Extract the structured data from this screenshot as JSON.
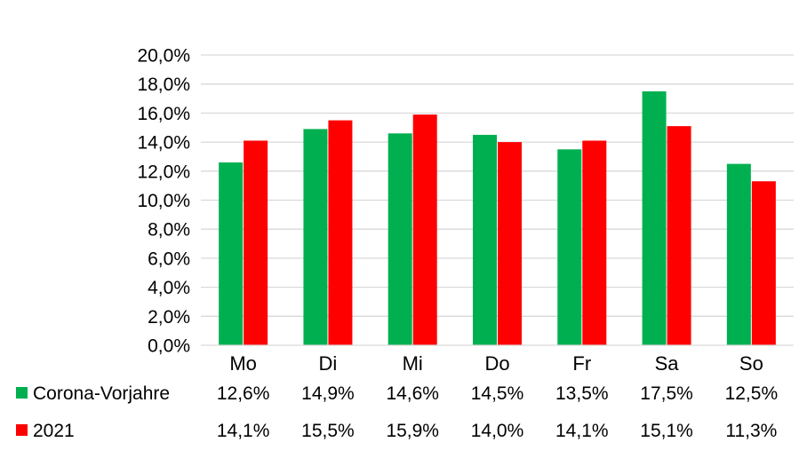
{
  "chart_data": {
    "type": "bar",
    "title": "",
    "xlabel": "",
    "ylabel": "",
    "categories": [
      "Mo",
      "Di",
      "Mi",
      "Do",
      "Fr",
      "Sa",
      "So"
    ],
    "ylim": [
      0,
      20
    ],
    "yticks": [
      "0,0%",
      "2,0%",
      "4,0%",
      "6,0%",
      "8,0%",
      "10,0%",
      "12,0%",
      "14,0%",
      "16,0%",
      "18,0%",
      "20,0%"
    ],
    "grid": true,
    "legend": "bottom (data table)",
    "series": [
      {
        "name": "Corona-Vorjahre",
        "color": "#00b050",
        "values": [
          12.6,
          14.9,
          14.6,
          14.5,
          13.5,
          17.5,
          12.5
        ],
        "labels": [
          "12,6%",
          "14,9%",
          "14,6%",
          "14,5%",
          "13,5%",
          "17,5%",
          "12,5%"
        ]
      },
      {
        "name": "2021",
        "color": "#ff0000",
        "values": [
          14.1,
          15.5,
          15.9,
          14.0,
          14.1,
          15.1,
          11.3
        ],
        "labels": [
          "14,1%",
          "15,5%",
          "15,9%",
          "14,0%",
          "14,1%",
          "15,1%",
          "11,3%"
        ]
      }
    ]
  }
}
